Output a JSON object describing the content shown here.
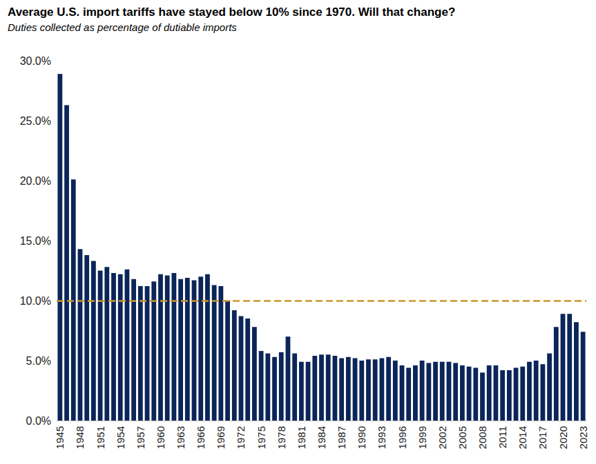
{
  "chart_data": {
    "type": "bar",
    "title": "Average U.S. import tariffs have stayed below 10% since 1970. Will that change?",
    "subtitle": "Duties collected as percentage of dutiable imports",
    "categories": [
      "1945",
      null,
      null,
      "1948",
      null,
      null,
      "1951",
      null,
      null,
      "1954",
      null,
      null,
      "1957",
      null,
      null,
      "1960",
      null,
      null,
      "1963",
      null,
      null,
      "1966",
      null,
      null,
      "1969",
      null,
      null,
      "1972",
      null,
      null,
      "1975",
      null,
      null,
      "1978",
      null,
      null,
      "1981",
      null,
      null,
      "1984",
      null,
      null,
      "1987",
      null,
      null,
      "1990",
      null,
      null,
      "1993",
      null,
      null,
      "1996",
      null,
      null,
      "1999",
      null,
      null,
      "2002",
      null,
      null,
      "2005",
      null,
      null,
      "2008",
      null,
      null,
      "2011",
      null,
      null,
      "2014",
      null,
      null,
      "2017",
      null,
      null,
      "2020",
      null,
      null,
      "2023"
    ],
    "values": [
      28.9,
      26.3,
      20.1,
      14.3,
      13.8,
      13.3,
      12.5,
      12.8,
      12.3,
      12.2,
      12.6,
      11.8,
      11.2,
      11.2,
      11.6,
      12.2,
      12.1,
      12.3,
      11.8,
      11.9,
      11.7,
      12.0,
      12.2,
      11.3,
      11.2,
      10.0,
      9.2,
      8.7,
      8.5,
      7.8,
      5.8,
      5.6,
      5.3,
      5.7,
      7.0,
      5.6,
      4.9,
      4.9,
      5.4,
      5.5,
      5.5,
      5.4,
      5.2,
      5.3,
      5.2,
      5.0,
      5.1,
      5.1,
      5.2,
      5.3,
      5.0,
      4.6,
      4.4,
      4.6,
      5.0,
      4.8,
      4.9,
      4.9,
      4.9,
      4.8,
      4.6,
      4.5,
      4.4,
      4.0,
      4.6,
      4.6,
      4.2,
      4.2,
      4.4,
      4.5,
      4.9,
      5.0,
      4.7,
      5.6,
      7.8,
      8.9,
      8.9,
      8.2,
      7.4
    ],
    "color": "#0b2559",
    "ylim": [
      0,
      30
    ],
    "yticks": [
      {
        "value": 0,
        "label": "0.0%"
      },
      {
        "value": 5,
        "label": "5.0%"
      },
      {
        "value": 10,
        "label": "10.0%"
      },
      {
        "value": 15,
        "label": "15.0%"
      },
      {
        "value": 20,
        "label": "20.0%"
      },
      {
        "value": 25,
        "label": "25.0%"
      },
      {
        "value": 30,
        "label": "30.0%"
      }
    ],
    "grid": false,
    "reference_line": {
      "value": 10,
      "color": "#c9962b",
      "line_style": "dashed"
    }
  }
}
